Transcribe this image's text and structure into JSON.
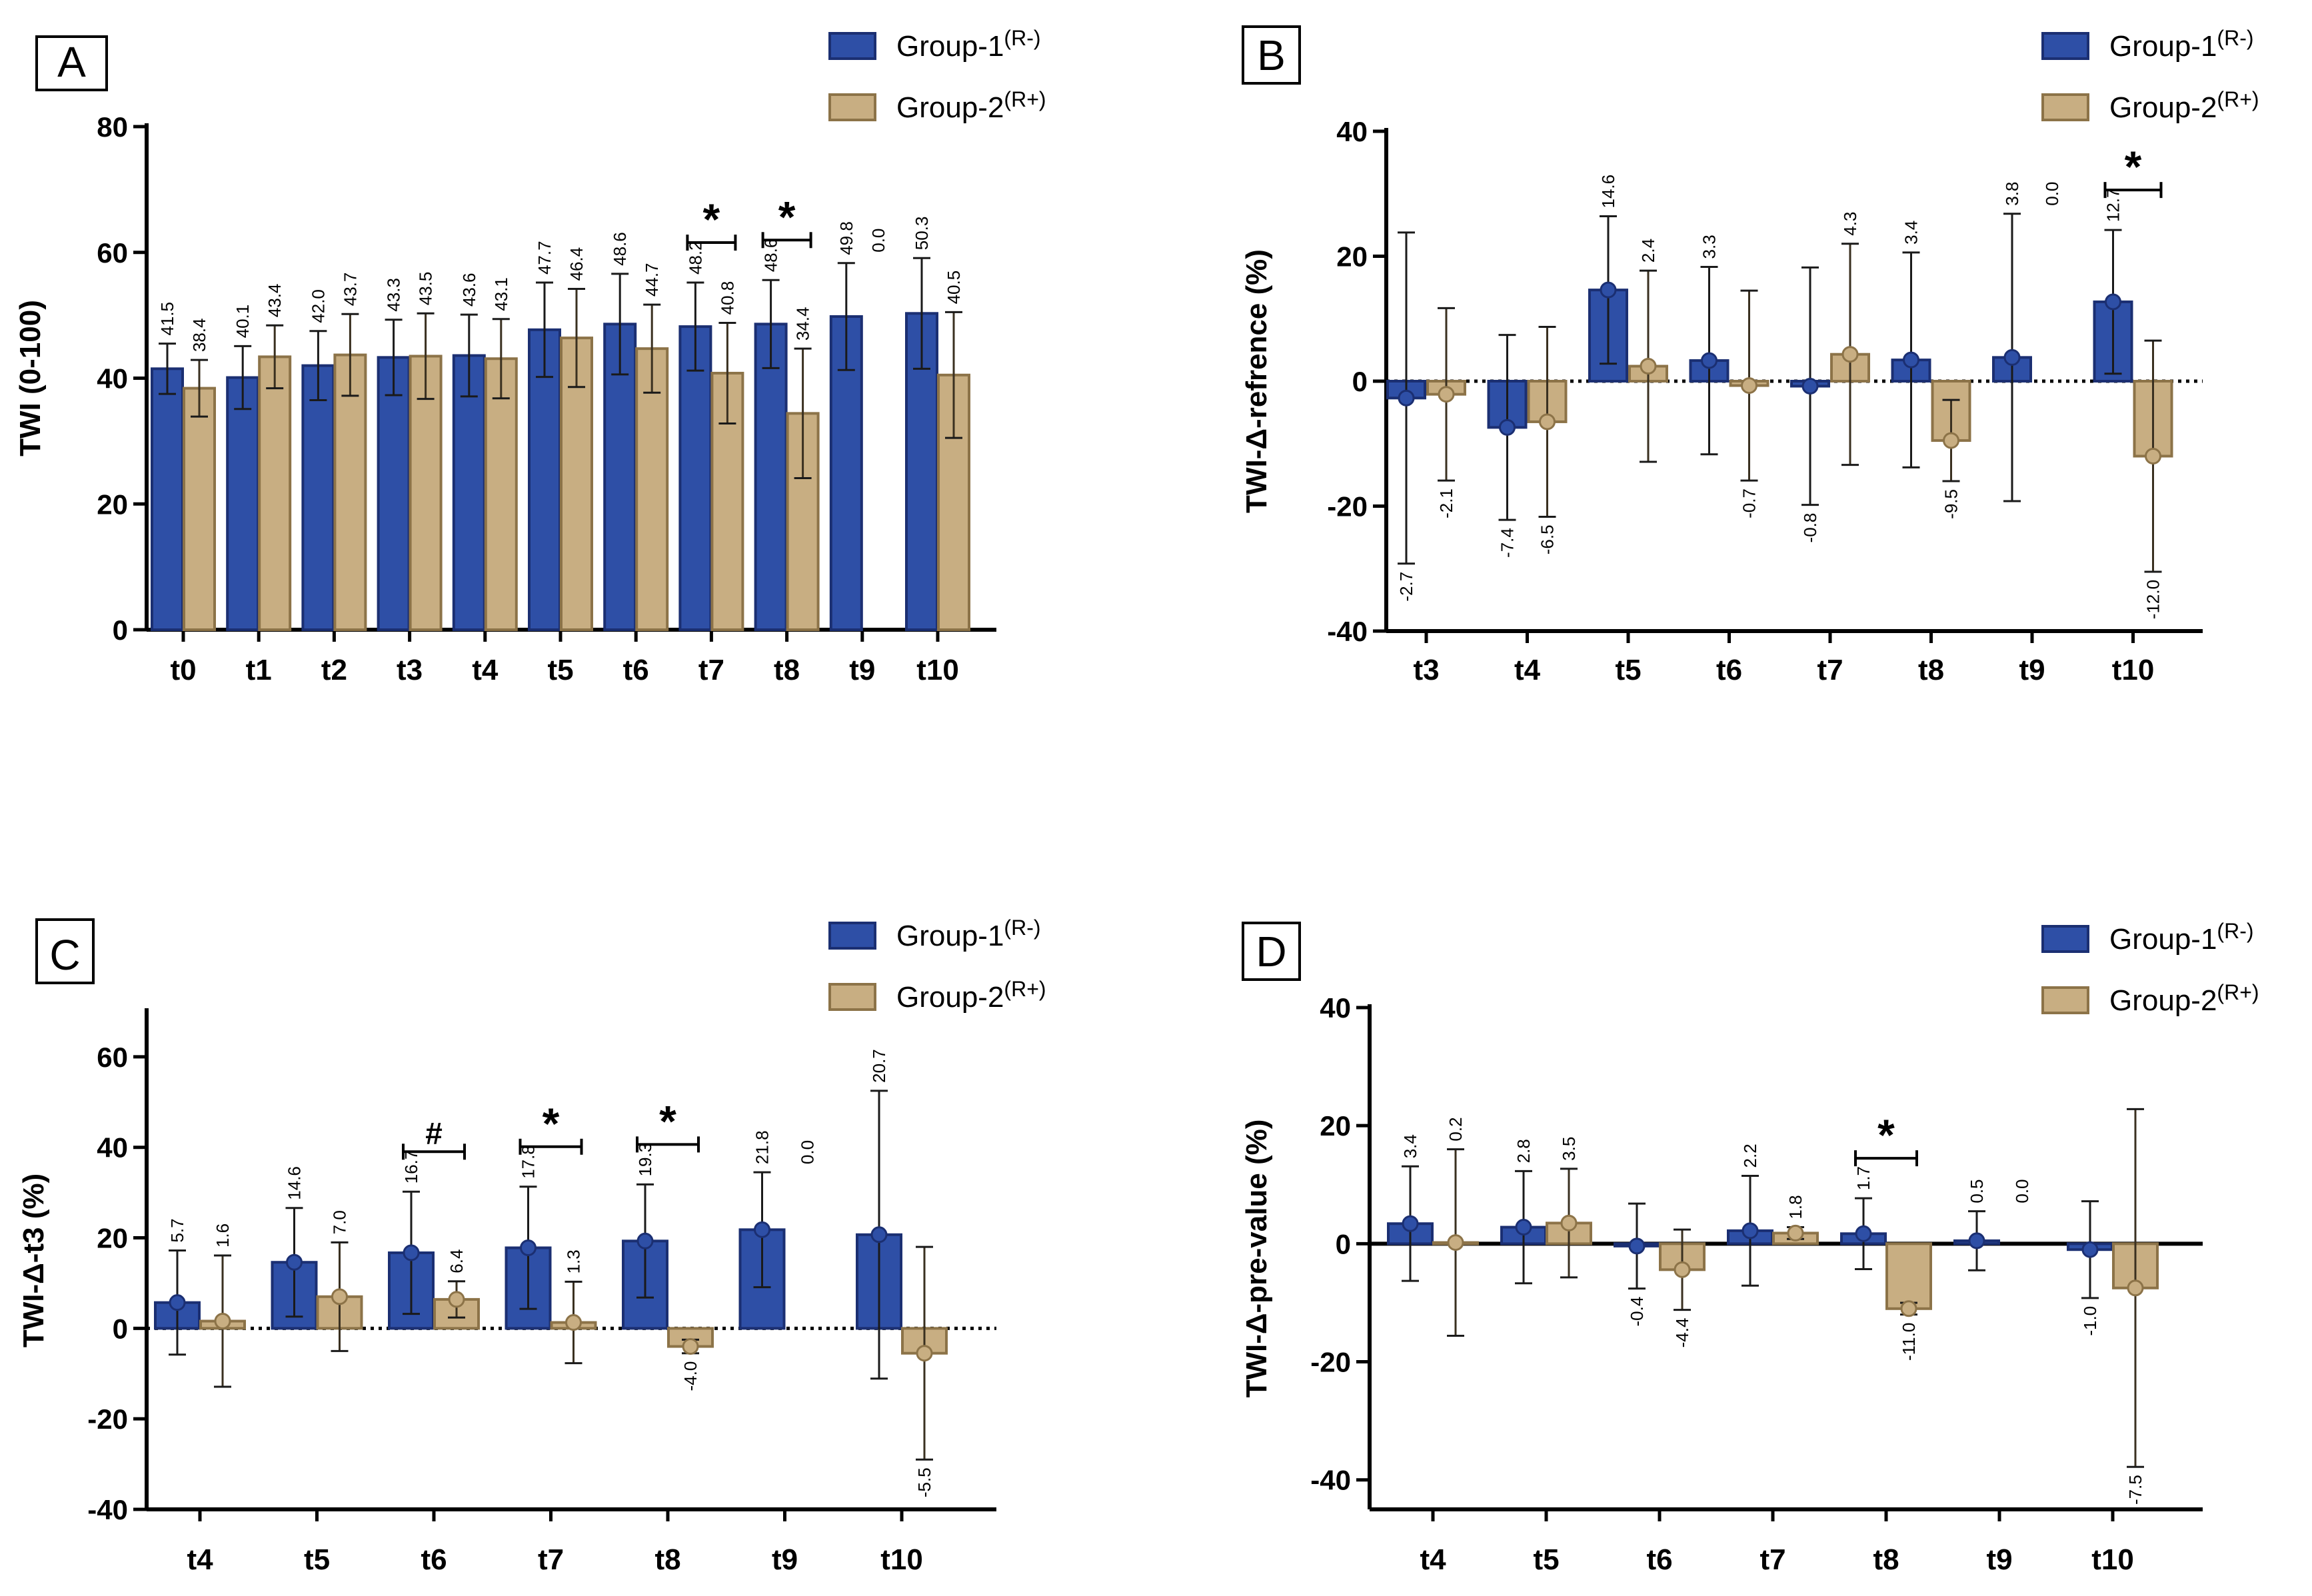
{
  "colors": {
    "group1": "#2E4FA6",
    "group1_edge": "#1B2F72",
    "group2": "#C8AE82",
    "group2_edge": "#8C7348",
    "axis": "#000000"
  },
  "chart_data": [
    {
      "panel": "A",
      "type": "bar",
      "ylabel": "TWI (0-100)",
      "ylim": [
        0,
        80
      ],
      "yticks": [
        "0",
        "20",
        "40",
        "60",
        "80"
      ],
      "categories": [
        "t0",
        "t1",
        "t2",
        "t3",
        "t4",
        "t5",
        "t6",
        "t7",
        "t8",
        "t9",
        "t10"
      ],
      "legend": [
        "Group-1",
        "Group-2"
      ],
      "legend_sup": [
        "(R-)",
        "(R+)"
      ],
      "zero_line": "solid",
      "markers": false,
      "series": [
        {
          "name": "Group-1",
          "values": [
            41.5,
            40.1,
            42.0,
            43.3,
            43.6,
            47.7,
            48.6,
            48.2,
            48.6,
            49.8,
            50.3
          ],
          "err": [
            4.0,
            5.0,
            5.5,
            6.0,
            6.5,
            7.5,
            8.0,
            7.0,
            7.0,
            8.5,
            8.8
          ],
          "labels": [
            "41.5",
            "40.1",
            "42.0",
            "43.3",
            "43.6",
            "47.7",
            "48.6",
            "48.2",
            "48.6",
            "49.8",
            "50.3"
          ]
        },
        {
          "name": "Group-2",
          "values": [
            38.4,
            43.4,
            43.7,
            43.5,
            43.1,
            46.4,
            44.7,
            40.8,
            34.4,
            null,
            40.5
          ],
          "err": [
            4.5,
            5.0,
            6.5,
            6.8,
            6.3,
            7.8,
            7.0,
            8.0,
            10.3,
            null,
            10.0
          ],
          "labels": [
            "38.4",
            "43.4",
            "43.7",
            "43.5",
            "43.1",
            "46.4",
            "44.7",
            "40.8",
            "34.4",
            "0.0",
            "40.5"
          ]
        }
      ],
      "annotations": [
        {
          "category": "t7",
          "symbol": "*"
        },
        {
          "category": "t8",
          "symbol": "*"
        }
      ]
    },
    {
      "panel": "B",
      "type": "bar",
      "ylabel": "TWI-Δ-refrence (%)",
      "ylim": [
        -40,
        40
      ],
      "yticks": [
        "-40",
        "-20",
        "0",
        "20",
        "40"
      ],
      "categories": [
        "t3",
        "t4",
        "t5",
        "t6",
        "t7",
        "t8",
        "t9",
        "t10"
      ],
      "legend": [
        "Group-1",
        "Group-2"
      ],
      "legend_sup": [
        "(R-)",
        "(R+)"
      ],
      "zero_line": "dotted",
      "markers": true,
      "series": [
        {
          "name": "Group-1",
          "values": [
            -2.7,
            -7.4,
            14.6,
            3.3,
            -0.8,
            3.4,
            3.8,
            12.7
          ],
          "err": [
            26.5,
            14.8,
            11.8,
            15.0,
            19.0,
            17.2,
            23.0,
            11.5
          ],
          "labels": [
            "-2.7",
            "-7.4",
            "14.6",
            "3.3",
            "-0.8",
            "3.4",
            "3.8",
            "12.7"
          ]
        },
        {
          "name": "Group-2",
          "values": [
            -2.1,
            -6.5,
            2.4,
            -0.7,
            4.3,
            -9.5,
            null,
            -12.0
          ],
          "err": [
            13.8,
            15.2,
            15.3,
            15.2,
            17.7,
            6.5,
            null,
            18.5
          ],
          "labels": [
            "-2.1",
            "-6.5",
            "2.4",
            "-0.7",
            "4.3",
            "-9.5",
            "0.0",
            "-12.0"
          ]
        }
      ],
      "annotations": [
        {
          "category": "t10",
          "symbol": "*"
        }
      ]
    },
    {
      "panel": "C",
      "type": "bar",
      "ylabel": "TWI-Δ-t3 (%)",
      "ylim": [
        -40,
        70
      ],
      "yticks": [
        "-40",
        "-20",
        "0",
        "20",
        "40",
        "60"
      ],
      "categories": [
        "t4",
        "t5",
        "t6",
        "t7",
        "t8",
        "t9",
        "t10"
      ],
      "legend": [
        "Group-1",
        "Group-2"
      ],
      "legend_sup": [
        "(R-)",
        "(R+)"
      ],
      "zero_line": "dotted",
      "markers": true,
      "series": [
        {
          "name": "Group-1",
          "values": [
            5.7,
            14.6,
            16.7,
            17.8,
            19.3,
            21.8,
            20.7
          ],
          "err": [
            11.5,
            12.0,
            13.5,
            13.5,
            12.5,
            12.7,
            31.8
          ],
          "labels": [
            "5.7",
            "14.6",
            "16.7",
            "17.8",
            "19.3",
            "21.8",
            "20.7"
          ]
        },
        {
          "name": "Group-2",
          "values": [
            1.6,
            7.0,
            6.4,
            1.3,
            -4.0,
            null,
            -5.5
          ],
          "err": [
            14.5,
            12.0,
            4.0,
            9.0,
            1.5,
            null,
            23.5
          ],
          "labels": [
            "1.6",
            "7.0",
            "6.4",
            "1.3",
            "-4.0",
            "0.0",
            "-5.5"
          ]
        }
      ],
      "annotations": [
        {
          "category": "t6",
          "symbol": "#"
        },
        {
          "category": "t7",
          "symbol": "*"
        },
        {
          "category": "t8",
          "symbol": "*"
        }
      ]
    },
    {
      "panel": "D",
      "type": "bar",
      "ylabel": "TWI-Δ-pre-value (%)",
      "ylim": [
        -45,
        40
      ],
      "yticks": [
        "-40",
        "-20",
        "0",
        "20",
        "40"
      ],
      "categories": [
        "t4",
        "t5",
        "t6",
        "t7",
        "t8",
        "t9",
        "t10"
      ],
      "legend": [
        "Group-1",
        "Group-2"
      ],
      "legend_sup": [
        "(R-)",
        "(R+)"
      ],
      "zero_line": "solid",
      "markers": true,
      "series": [
        {
          "name": "Group-1",
          "values": [
            3.4,
            2.8,
            -0.4,
            2.2,
            1.7,
            0.5,
            -1.0
          ],
          "err": [
            9.7,
            9.5,
            7.2,
            9.3,
            6.0,
            5.0,
            8.2
          ],
          "labels": [
            "3.4",
            "2.8",
            "-0.4",
            "2.2",
            "1.7",
            "0.5",
            "-1.0"
          ]
        },
        {
          "name": "Group-2",
          "values": [
            0.2,
            3.5,
            -4.4,
            1.8,
            -11.0,
            null,
            -7.5
          ],
          "err": [
            15.8,
            9.2,
            6.8,
            1.0,
            1.0,
            null,
            30.3
          ],
          "labels": [
            "0.2",
            "3.5",
            "-4.4",
            "1.8",
            "-11.0",
            "0.0",
            "-7.5"
          ]
        }
      ],
      "annotations": [
        {
          "category": "t8",
          "symbol": "*"
        }
      ]
    }
  ]
}
